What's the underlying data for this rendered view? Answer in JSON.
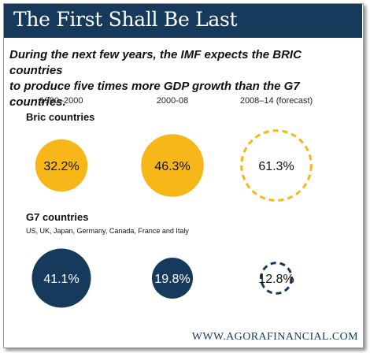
{
  "header": {
    "title": "The First Shall Be Last",
    "subtitle_line1": "During the next few years, the IMF expects the BRIC countries",
    "subtitle_line2": "to produce five times more GDP growth than the G7 countries."
  },
  "footer": {
    "url": "WWW.AGORAFINANCIAL.COM"
  },
  "colors": {
    "bric": "#f7b718",
    "g7": "#163a5c",
    "banner": "#163a5c"
  },
  "chart_data": {
    "type": "bubble",
    "title": "The First Shall Be Last",
    "periods": [
      "1990–2000",
      "2000-08",
      "2008–14 (forecast)"
    ],
    "forecast_period": "2008–14 (forecast)",
    "series": [
      {
        "name": "Bric countries",
        "note": "",
        "values": [
          32.2,
          46.3,
          61.3
        ],
        "labels": [
          "32.2%",
          "46.3%",
          "61.3%"
        ],
        "color": "#f7b718"
      },
      {
        "name": "G7 countries",
        "note": "US, UK, Japan, Germany, Canada, France and Italy",
        "values": [
          41.1,
          19.8,
          12.8
        ],
        "labels": [
          "41.1%",
          "19.8%",
          "12.8%"
        ],
        "color": "#163a5c"
      }
    ]
  }
}
